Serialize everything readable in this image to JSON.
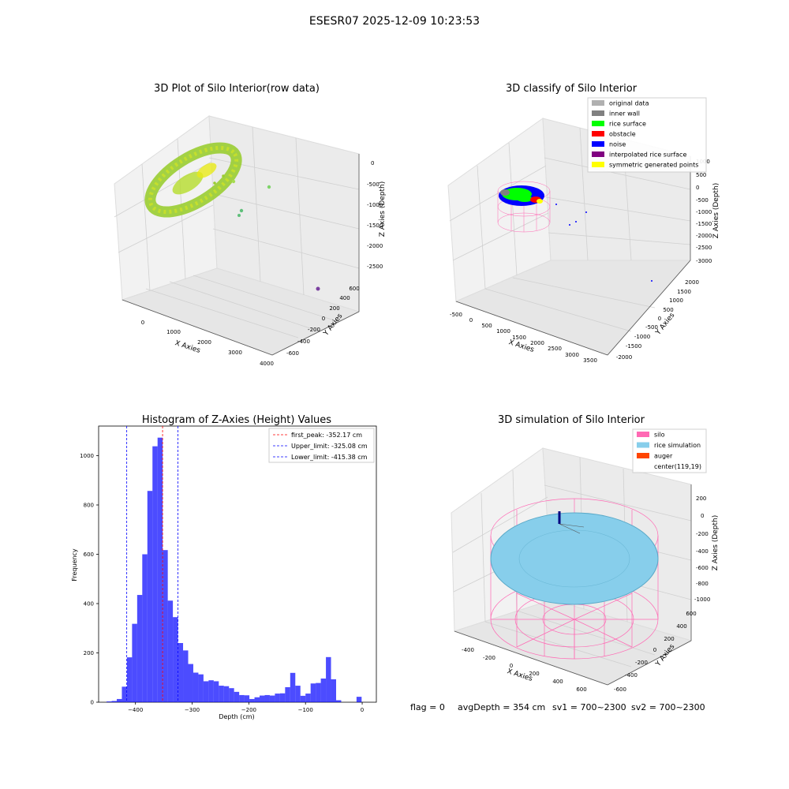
{
  "figure": {
    "suptitle": "ESESR07 2025-12-09 10:23:53",
    "status": {
      "flag": "flag = 0",
      "avg_depth": "avgDepth = 354 cm",
      "sv1": "sv1 = 700~2300",
      "sv2": "sv2 = 700~2300"
    }
  },
  "panels": {
    "raw": {
      "title": "3D Plot of Silo Interior(row data)",
      "xlabel": "X Axies",
      "ylabel": "Y Axies",
      "zlabel": "Z Axies (Depth)",
      "xticks": [
        "0",
        "1000",
        "2000",
        "3000",
        "4000"
      ],
      "yticks": [
        "600",
        "400",
        "200",
        "0",
        "-200",
        "-400",
        "-600"
      ],
      "zticks": [
        "0",
        "-500",
        "-1000",
        "-1500",
        "-2000",
        "-2500"
      ]
    },
    "classify": {
      "title": "3D classify of Silo Interior",
      "xlabel": "X Axies",
      "ylabel": "Y Axies",
      "zlabel": "Z Axies (Depth)",
      "xticks": [
        "-500",
        "0",
        "500",
        "1000",
        "1500",
        "2000",
        "2500",
        "3000",
        "3500"
      ],
      "yticks": [
        "2000",
        "1500",
        "1000",
        "500",
        "0",
        "-500",
        "-1000",
        "-1500",
        "-2000"
      ],
      "zticks": [
        "1000",
        "500",
        "0",
        "-500",
        "-1000",
        "-1500",
        "-2000",
        "-2500",
        "-3000"
      ],
      "legend": [
        {
          "label": "original data",
          "color": "#b0b0b0"
        },
        {
          "label": "inner wall",
          "color": "#808080"
        },
        {
          "label": "rice surface",
          "color": "#00ff00"
        },
        {
          "label": "obstacle",
          "color": "#ff0000"
        },
        {
          "label": "noise",
          "color": "#0000ff"
        },
        {
          "label": "interpolated rice surface",
          "color": "#800080"
        },
        {
          "label": "symmetric generated points",
          "color": "#ffff00"
        }
      ]
    },
    "simulation": {
      "title": "3D simulation of Silo Interior",
      "xlabel": "X Axies",
      "ylabel": "Y Axies",
      "zlabel": "Z Axies (Depth)",
      "xticks": [
        "-400",
        "-200",
        "0",
        "200",
        "400",
        "600"
      ],
      "yticks": [
        "600",
        "400",
        "200",
        "0",
        "-200",
        "-400",
        "-600"
      ],
      "zticks": [
        "200",
        "0",
        "-200",
        "-400",
        "-600",
        "-800",
        "-1000"
      ],
      "legend": [
        {
          "label": "silo",
          "color": "#ff69b4"
        },
        {
          "label": "rice simulation",
          "color": "#87ceeb"
        },
        {
          "label": "auger",
          "color": "#ff4500"
        },
        {
          "label": "center(119,19)",
          "color": "#ffffff"
        }
      ]
    }
  },
  "chart_data": {
    "type": "bar",
    "title": "Histogram of Z-Axies (Height) Values",
    "xlabel": "Depth (cm)",
    "ylabel": "Frequency",
    "xlim": [
      -465,
      25
    ],
    "ylim": [
      0,
      1120
    ],
    "xticks": [
      -400,
      -300,
      -200,
      -100,
      0
    ],
    "yticks": [
      0,
      200,
      400,
      600,
      800,
      1000
    ],
    "bar_color": "#0000ff",
    "bin_width": 9,
    "bins": [
      -451,
      -442,
      -433,
      -424,
      -415,
      -406,
      -397,
      -388,
      -379,
      -370,
      -361,
      -352,
      -343,
      -334,
      -325,
      -316,
      -307,
      -298,
      -289,
      -280,
      -271,
      -262,
      -253,
      -244,
      -235,
      -226,
      -217,
      -208,
      -199,
      -190,
      -181,
      -172,
      -163,
      -154,
      -145,
      -136,
      -127,
      -118,
      -109,
      -100,
      -91,
      -82,
      -73,
      -64,
      -55,
      -46,
      -37,
      -28,
      -19,
      -10,
      -1
    ],
    "values": [
      3,
      5,
      13,
      63,
      182,
      318,
      435,
      600,
      857,
      1038,
      1073,
      617,
      412,
      345,
      240,
      210,
      155,
      120,
      113,
      85,
      89,
      85,
      67,
      65,
      57,
      42,
      29,
      28,
      13,
      20,
      27,
      29,
      27,
      35,
      36,
      61,
      119,
      67,
      26,
      35,
      76,
      78,
      96,
      183,
      93,
      8,
      0,
      0,
      0,
      22,
      0
    ],
    "vlines": [
      {
        "x": -352.17,
        "label": "first_peak: -352.17 cm",
        "color": "#ff0000"
      },
      {
        "x": -325.08,
        "label": "Upper_limit: -325.08 cm",
        "color": "#0000ff"
      },
      {
        "x": -415.38,
        "label": "Lower_limit: -415.38 cm",
        "color": "#0000ff"
      }
    ],
    "legend_position": "upper-right"
  }
}
